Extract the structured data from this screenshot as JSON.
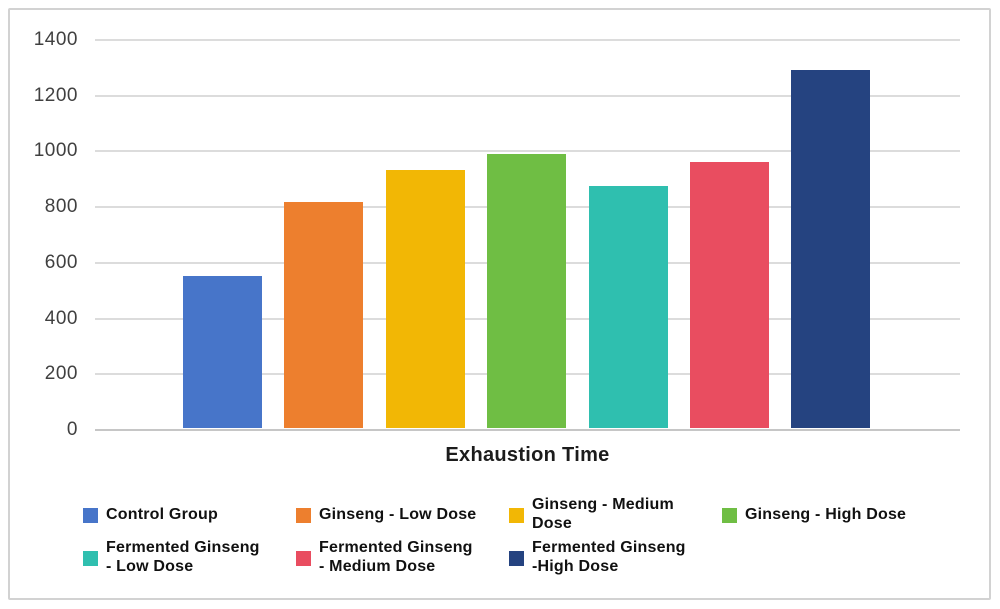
{
  "chart_data": {
    "type": "bar",
    "title": "",
    "xlabel": "Exhaustion Time",
    "ylabel": "",
    "ylim": [
      0,
      1400
    ],
    "ytick_step": 200,
    "yticks": [
      0,
      200,
      400,
      600,
      800,
      1000,
      1200,
      1400
    ],
    "grid": true,
    "legend_position": "bottom",
    "categories": [
      "Control Group",
      "Ginseng - Low Dose",
      "Ginseng - Medium Dose",
      "Ginseng - High Dose",
      "Fermented Ginseng - Low Dose",
      "Fermented Ginseng - Medium Dose",
      "Fermented Ginseng -High Dose"
    ],
    "values": [
      545,
      810,
      925,
      985,
      870,
      955,
      1285
    ],
    "colors": [
      "#4775C9",
      "#ED7F2E",
      "#F2B705",
      "#6FBE44",
      "#2FBFAF",
      "#E94D60",
      "#254380"
    ],
    "bars": [
      {
        "label": "Control Group",
        "value": 545,
        "color": "#4775C9"
      },
      {
        "label": "Ginseng - Low Dose",
        "value": 810,
        "color": "#ED7F2E"
      },
      {
        "label": "Ginseng - Medium Dose",
        "value": 925,
        "color": "#F2B705"
      },
      {
        "label": "Ginseng - High Dose",
        "value": 985,
        "color": "#6FBE44"
      },
      {
        "label": "Fermented Ginseng - Low Dose",
        "value": 870,
        "color": "#2FBFAF"
      },
      {
        "label": "Fermented Ginseng - Medium Dose",
        "value": 955,
        "color": "#E94D60"
      },
      {
        "label": "Fermented Ginseng -High Dose",
        "value": 1285,
        "color": "#254380"
      }
    ]
  },
  "axis": {
    "x_title": "Exhaustion Time"
  },
  "legend": {
    "items": [
      {
        "label": "Control Group",
        "color": "#4775C9"
      },
      {
        "label": "Ginseng - Low Dose",
        "color": "#ED7F2E"
      },
      {
        "label": "Ginseng - Medium\nDose",
        "color": "#F2B705"
      },
      {
        "label": "Ginseng - High Dose",
        "color": "#6FBE44"
      },
      {
        "label": "Fermented Ginseng\n - Low Dose",
        "color": "#2FBFAF"
      },
      {
        "label": "Fermented Ginseng\n - Medium Dose",
        "color": "#E94D60"
      },
      {
        "label": "Fermented Ginseng\n-High Dose",
        "color": "#254380"
      }
    ]
  },
  "style": {
    "gridline_color": "#dcdcdc",
    "zero_line_color": "#c6c6c6",
    "frame_border_color": "#d2d2d2",
    "tick_label_color": "#404040",
    "text_color": "#111111"
  }
}
